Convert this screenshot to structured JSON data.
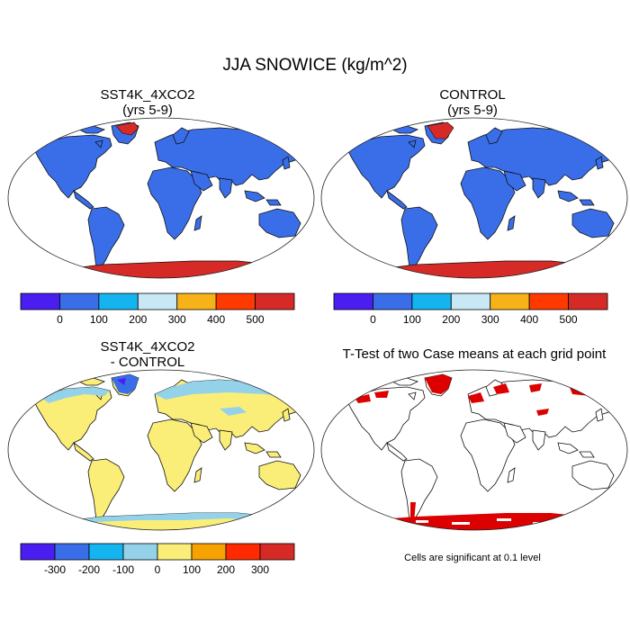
{
  "figure": {
    "title": "JJA SNOWICE (kg/m^2)"
  },
  "panels": {
    "case": {
      "title_line1": "SST4K_4XCO2",
      "title_line2": "(yrs 5-9)"
    },
    "control": {
      "title_line1": "CONTROL",
      "title_line2": "(yrs 5-9)"
    },
    "diff": {
      "title_line1": "SST4K_4XCO2",
      "title_line2": "- CONTROL"
    },
    "ttest": {
      "title_line1": "T-Test of two Case means at each grid point",
      "note": "Cells are significant at 0.1 level"
    }
  },
  "colors": {
    "abs_scale": [
      "#4a1ef0",
      "#3a6ee8",
      "#14b4f0",
      "#c8e8f5",
      "#f7b21a",
      "#ff3a00",
      "#d62a26"
    ],
    "diff_scale": [
      "#4a1ef0",
      "#3a6ee8",
      "#14b4f0",
      "#94d2ea",
      "#fbee78",
      "#f7a200",
      "#ff2a00",
      "#d62a26"
    ],
    "significant": "#dd0000",
    "land_low": "#3a6ee8",
    "ice_high": "#d62a26"
  },
  "chart_data": [
    {
      "type": "heatmap",
      "title": "SST4K_4XCO2",
      "subtitle": "(yrs 5-9)",
      "colorbar_labels": [
        "0",
        "100",
        "200",
        "300",
        "400",
        "500"
      ],
      "colorbar_levels": [
        0,
        100,
        200,
        300,
        400,
        500
      ]
    },
    {
      "type": "heatmap",
      "title": "CONTROL",
      "subtitle": "(yrs 5-9)",
      "colorbar_labels": [
        "0",
        "100",
        "200",
        "300",
        "400",
        "500"
      ],
      "colorbar_levels": [
        0,
        100,
        200,
        300,
        400,
        500
      ]
    },
    {
      "type": "heatmap",
      "title": "SST4K_4XCO2",
      "subtitle": "- CONTROL",
      "colorbar_labels": [
        "-300",
        "-200",
        "-100",
        "0",
        "100",
        "200",
        "300"
      ],
      "colorbar_levels": [
        -300,
        -200,
        -100,
        0,
        100,
        200,
        300
      ]
    },
    {
      "type": "heatmap",
      "title": "T-Test of two Case means at each grid point",
      "annotation": "Cells are significant at 0.1 level"
    }
  ]
}
